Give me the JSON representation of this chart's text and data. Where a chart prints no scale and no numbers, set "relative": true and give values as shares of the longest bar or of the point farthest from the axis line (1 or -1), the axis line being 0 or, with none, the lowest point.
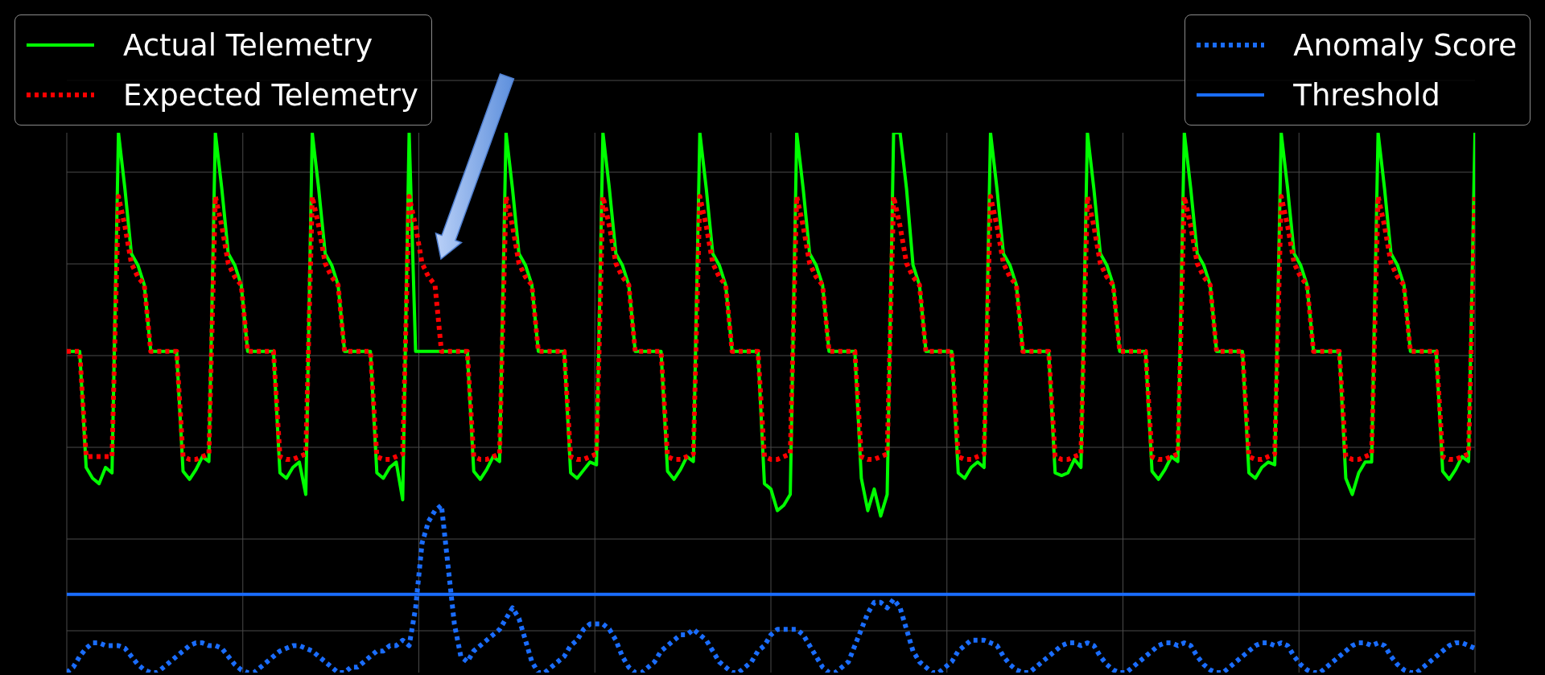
{
  "chart_data": {
    "type": "line",
    "relative": true,
    "grid": true,
    "legend": "top",
    "categories": [
      null,
      null,
      null,
      null,
      null,
      null,
      null,
      null,
      null,
      null,
      null,
      null,
      null,
      null,
      null,
      null,
      null,
      null,
      null,
      null,
      null,
      null,
      null,
      null,
      null,
      null,
      null,
      null,
      null,
      null,
      null,
      null,
      null,
      null,
      null,
      null,
      null,
      null,
      null,
      null,
      null,
      null,
      null,
      null,
      null,
      null,
      null,
      null,
      null,
      null,
      null,
      null,
      null,
      null,
      null,
      null,
      null,
      null,
      null,
      null,
      null,
      null,
      null,
      null,
      null,
      null,
      null,
      null,
      null,
      null,
      null,
      null,
      null,
      null,
      null,
      null,
      null,
      null,
      null,
      null,
      null,
      null,
      null,
      null,
      null,
      null,
      null,
      null,
      null,
      null,
      null,
      null,
      null,
      null,
      null,
      null,
      null,
      null,
      null,
      null,
      null,
      null,
      null,
      null,
      null,
      null,
      null,
      null,
      null,
      null,
      null,
      null,
      null,
      null,
      null,
      null,
      null,
      null,
      null,
      null,
      null,
      null,
      null,
      null,
      null,
      null,
      null,
      null,
      null,
      null,
      null,
      null,
      null,
      null,
      null,
      null,
      null,
      null,
      null,
      null,
      null,
      null,
      null,
      null,
      null,
      null,
      null,
      null,
      null,
      null,
      null,
      null,
      null,
      null,
      null,
      null,
      null,
      null,
      null,
      null,
      null,
      null,
      null,
      null,
      null,
      null,
      null,
      null,
      null,
      null,
      null,
      null,
      null,
      null,
      null,
      null,
      null,
      null,
      null,
      null,
      null,
      null,
      null,
      null,
      null,
      null,
      null,
      null,
      null,
      null,
      null,
      null,
      null,
      null,
      null,
      null,
      null,
      null,
      null,
      null,
      null,
      null,
      null,
      null,
      null,
      null,
      null,
      null,
      null,
      null,
      null,
      null,
      null,
      null,
      null,
      null,
      null,
      null,
      null
    ],
    "series": [
      {
        "name": "Actual Telemetry",
        "color": "#00ff00",
        "line_style": "solid",
        "values": [
          0.595,
          0.595,
          0.595,
          0.38,
          0.36,
          0.35,
          0.38,
          0.37,
          1,
          0.896,
          0.776,
          0.755,
          0.718,
          0.595,
          0.595,
          0.595,
          0.595,
          0.595,
          0.373,
          0.358,
          0.376,
          0.4,
          0.391,
          1,
          0.896,
          0.776,
          0.755,
          0.718,
          0.595,
          0.595,
          0.595,
          0.595,
          0.595,
          0.37,
          0.36,
          0.38,
          0.39,
          0.33,
          1,
          0.896,
          0.776,
          0.755,
          0.718,
          0.595,
          0.595,
          0.595,
          0.595,
          0.595,
          0.37,
          0.36,
          0.38,
          0.39,
          0.32,
          1,
          0.595,
          0.595,
          0.595,
          0.595,
          0.595,
          0.595,
          0.595,
          0.595,
          0.595,
          0.373,
          0.358,
          0.376,
          0.4,
          0.391,
          1,
          0.896,
          0.776,
          0.755,
          0.718,
          0.595,
          0.595,
          0.595,
          0.595,
          0.595,
          0.37,
          0.36,
          0.375,
          0.39,
          0.385,
          1,
          0.896,
          0.776,
          0.755,
          0.718,
          0.595,
          0.595,
          0.595,
          0.595,
          0.595,
          0.373,
          0.358,
          0.376,
          0.4,
          0.391,
          1,
          0.896,
          0.776,
          0.755,
          0.718,
          0.595,
          0.595,
          0.595,
          0.595,
          0.595,
          0.35,
          0.34,
          0.3,
          0.31,
          0.33,
          1,
          0.896,
          0.776,
          0.755,
          0.718,
          0.595,
          0.595,
          0.595,
          0.595,
          0.595,
          0.36,
          0.3,
          0.34,
          0.29,
          0.33,
          1,
          1,
          0.896,
          0.755,
          0.718,
          0.595,
          0.595,
          0.595,
          0.595,
          0.595,
          0.37,
          0.36,
          0.38,
          0.39,
          0.38,
          1,
          0.896,
          0.776,
          0.755,
          0.718,
          0.595,
          0.595,
          0.595,
          0.595,
          0.595,
          0.37,
          0.365,
          0.37,
          0.395,
          0.38,
          1,
          0.896,
          0.776,
          0.755,
          0.718,
          0.595,
          0.595,
          0.595,
          0.595,
          0.595,
          0.373,
          0.358,
          0.376,
          0.4,
          0.391,
          1,
          0.896,
          0.776,
          0.755,
          0.718,
          0.595,
          0.595,
          0.595,
          0.595,
          0.595,
          0.37,
          0.36,
          0.38,
          0.39,
          0.385,
          1,
          0.896,
          0.776,
          0.755,
          0.718,
          0.595,
          0.595,
          0.595,
          0.595,
          0.595,
          0.36,
          0.33,
          0.37,
          0.39,
          0.39,
          1,
          0.896,
          0.776,
          0.755,
          0.718,
          0.595,
          0.595,
          0.595,
          0.595,
          0.595,
          0.373,
          0.358,
          0.376,
          0.4,
          0.391,
          1
        ]
      },
      {
        "name": "Expected Telemetry",
        "color": "#ff0000",
        "line_style": "dotted",
        "values": [
          0.595,
          0.595,
          0.595,
          0.4,
          0.4,
          0.4,
          0.4,
          0.4,
          0.882,
          0.827,
          0.758,
          0.733,
          0.718,
          0.595,
          0.595,
          0.595,
          0.595,
          0.595,
          0.4,
          0.395,
          0.395,
          0.4,
          0.405,
          0.882,
          0.827,
          0.758,
          0.733,
          0.718,
          0.595,
          0.595,
          0.595,
          0.595,
          0.595,
          0.4,
          0.395,
          0.395,
          0.4,
          0.405,
          0.882,
          0.827,
          0.758,
          0.733,
          0.718,
          0.595,
          0.595,
          0.595,
          0.595,
          0.595,
          0.4,
          0.395,
          0.395,
          0.4,
          0.405,
          0.882,
          0.827,
          0.758,
          0.733,
          0.718,
          0.595,
          0.595,
          0.595,
          0.595,
          0.595,
          0.4,
          0.395,
          0.395,
          0.4,
          0.405,
          0.882,
          0.827,
          0.758,
          0.733,
          0.718,
          0.595,
          0.595,
          0.595,
          0.595,
          0.595,
          0.4,
          0.395,
          0.395,
          0.4,
          0.405,
          0.882,
          0.827,
          0.758,
          0.733,
          0.718,
          0.595,
          0.595,
          0.595,
          0.595,
          0.595,
          0.4,
          0.395,
          0.395,
          0.4,
          0.405,
          0.882,
          0.827,
          0.758,
          0.733,
          0.718,
          0.595,
          0.595,
          0.595,
          0.595,
          0.595,
          0.4,
          0.395,
          0.395,
          0.4,
          0.405,
          0.882,
          0.827,
          0.758,
          0.733,
          0.718,
          0.595,
          0.595,
          0.595,
          0.595,
          0.595,
          0.4,
          0.395,
          0.395,
          0.4,
          0.405,
          0.882,
          0.827,
          0.758,
          0.733,
          0.718,
          0.595,
          0.595,
          0.595,
          0.595,
          0.595,
          0.4,
          0.395,
          0.395,
          0.4,
          0.405,
          0.882,
          0.827,
          0.758,
          0.733,
          0.718,
          0.595,
          0.595,
          0.595,
          0.595,
          0.595,
          0.4,
          0.395,
          0.395,
          0.4,
          0.405,
          0.882,
          0.827,
          0.758,
          0.733,
          0.718,
          0.595,
          0.595,
          0.595,
          0.595,
          0.595,
          0.4,
          0.395,
          0.395,
          0.4,
          0.405,
          0.882,
          0.827,
          0.758,
          0.733,
          0.718,
          0.595,
          0.595,
          0.595,
          0.595,
          0.595,
          0.4,
          0.395,
          0.395,
          0.4,
          0.405,
          0.882,
          0.827,
          0.758,
          0.733,
          0.718,
          0.595,
          0.595,
          0.595,
          0.595,
          0.595,
          0.4,
          0.395,
          0.395,
          0.4,
          0.405,
          0.882,
          0.827,
          0.758,
          0.733,
          0.718,
          0.595,
          0.595,
          0.595,
          0.595,
          0.595,
          0.4,
          0.395,
          0.395,
          0.4,
          0.405,
          0.882
        ]
      },
      {
        "name": "Anomaly Score",
        "color": "#1a6dff",
        "line_style": "dotted",
        "values": [
          0,
          0.01,
          0.03,
          0.045,
          0.055,
          0.055,
          0.05,
          0.05,
          0.05,
          0.045,
          0.03,
          0.015,
          0.005,
          0,
          0,
          0.01,
          0.02,
          0.03,
          0.04,
          0.05,
          0.055,
          0.055,
          0.05,
          0.05,
          0.045,
          0.03,
          0.015,
          0.005,
          0,
          0,
          0.01,
          0.02,
          0.03,
          0.04,
          0.045,
          0.05,
          0.05,
          0.045,
          0.04,
          0.03,
          0.02,
          0.01,
          0,
          0,
          0.01,
          0.01,
          0.02,
          0.03,
          0.04,
          0.04,
          0.05,
          0.05,
          0.06,
          0.05,
          0.12,
          0.24,
          0.28,
          0.3,
          0.31,
          0.2,
          0.09,
          0.03,
          0.02,
          0.04,
          0.05,
          0.06,
          0.07,
          0.08,
          0.1,
          0.12,
          0.1,
          0.06,
          0.02,
          0,
          0,
          0.01,
          0.02,
          0.03,
          0.05,
          0.06,
          0.08,
          0.09,
          0.09,
          0.09,
          0.08,
          0.06,
          0.03,
          0.01,
          0,
          0,
          0.01,
          0.02,
          0.04,
          0.05,
          0.06,
          0.07,
          0.07,
          0.08,
          0.07,
          0.06,
          0.04,
          0.02,
          0.01,
          0,
          0,
          0.01,
          0.02,
          0.04,
          0.05,
          0.07,
          0.08,
          0.08,
          0.08,
          0.08,
          0.07,
          0.05,
          0.03,
          0.01,
          0,
          0,
          0.01,
          0.02,
          0.05,
          0.08,
          0.11,
          0.13,
          0.13,
          0.12,
          0.136,
          0.12,
          0.08,
          0.04,
          0.02,
          0.01,
          0,
          0,
          0.01,
          0.02,
          0.04,
          0.05,
          0.06,
          0.06,
          0.06,
          0.055,
          0.05,
          0.03,
          0.015,
          0.005,
          0,
          0,
          0.01,
          0.02,
          0.03,
          0.04,
          0.05,
          0.055,
          0.055,
          0.05,
          0.055,
          0.05,
          0.03,
          0.015,
          0.005,
          0,
          0,
          0.01,
          0.02,
          0.03,
          0.04,
          0.05,
          0.055,
          0.055,
          0.05,
          0.055,
          0.05,
          0.03,
          0.015,
          0.005,
          0,
          0,
          0.01,
          0.02,
          0.03,
          0.04,
          0.05,
          0.055,
          0.055,
          0.05,
          0.055,
          0.05,
          0.03,
          0.015,
          0.005,
          0,
          0,
          0.01,
          0.02,
          0.03,
          0.04,
          0.05,
          0.055,
          0.055,
          0.05,
          0.055,
          0.05,
          0.03,
          0.015,
          0.005,
          0,
          0,
          0.01,
          0.02,
          0.03,
          0.04,
          0.05,
          0.055,
          0.055,
          0.05,
          0.045
        ]
      }
    ],
    "ref_lines": [
      {
        "axis": "y",
        "value": 0.145,
        "label": "Threshold",
        "color": "#1a6dff",
        "line_style": "solid"
      }
    ]
  }
}
